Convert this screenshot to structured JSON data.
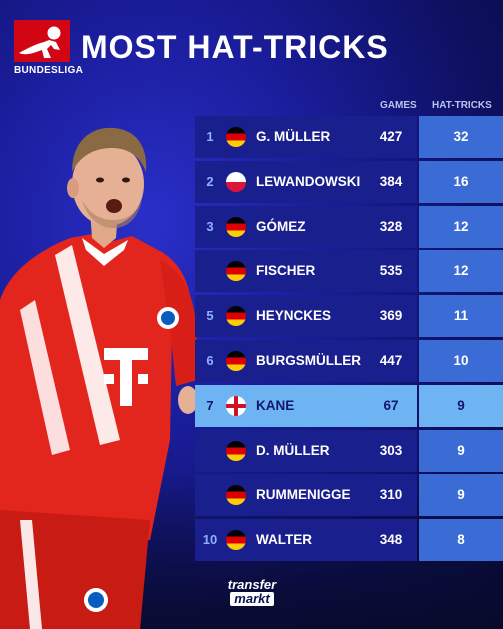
{
  "header": {
    "logo_text": "BUNDESLIGA",
    "title": "MOST HAT-TRICKS"
  },
  "chart_data": {
    "type": "table",
    "columns": [
      "GAMES",
      "HAT-TRICKS"
    ],
    "rows": [
      {
        "rank": "1",
        "flag": "germany-flag-icon",
        "name": "G. MÜLLER",
        "games": 427,
        "hat_tricks": 32,
        "highlight": false
      },
      {
        "rank": "2",
        "flag": "poland-flag-icon",
        "name": "LEWANDOWSKI",
        "games": 384,
        "hat_tricks": 16,
        "highlight": false
      },
      {
        "rank": "3",
        "flag": "germany-flag-icon",
        "name": "GÓMEZ",
        "games": 328,
        "hat_tricks": 12,
        "highlight": false
      },
      {
        "rank": "",
        "flag": "germany-flag-icon",
        "name": "FISCHER",
        "games": 535,
        "hat_tricks": 12,
        "highlight": false
      },
      {
        "rank": "5",
        "flag": "germany-flag-icon",
        "name": "HEYNCKES",
        "games": 369,
        "hat_tricks": 11,
        "highlight": false
      },
      {
        "rank": "6",
        "flag": "germany-flag-icon",
        "name": "BURGSMÜLLER",
        "games": 447,
        "hat_tricks": 10,
        "highlight": false
      },
      {
        "rank": "7",
        "flag": "england-flag-icon",
        "name": "KANE",
        "games": 67,
        "hat_tricks": 9,
        "highlight": true
      },
      {
        "rank": "",
        "flag": "germany-flag-icon",
        "name": "D. MÜLLER",
        "games": 303,
        "hat_tricks": 9,
        "highlight": false
      },
      {
        "rank": "",
        "flag": "germany-flag-icon",
        "name": "RUMMENIGGE",
        "games": 310,
        "hat_tricks": 9,
        "highlight": false
      },
      {
        "rank": "10",
        "flag": "germany-flag-icon",
        "name": "WALTER",
        "games": 348,
        "hat_tricks": 8,
        "highlight": false
      }
    ]
  },
  "footer": {
    "brand_line1": "transfer",
    "brand_line2": "markt"
  },
  "colors": {
    "row_background": "#1a1f8e",
    "hat_column_background": "#3b6bd4",
    "highlight_background": "#6fb4f2",
    "bundesliga_red": "#d20515"
  }
}
